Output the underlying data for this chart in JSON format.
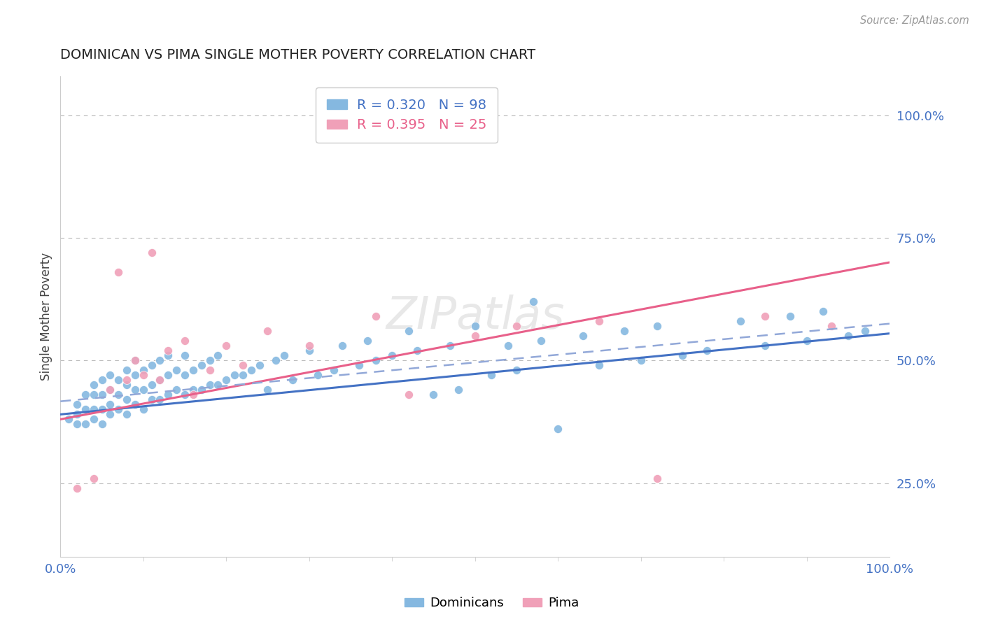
{
  "title": "DOMINICAN VS PIMA SINGLE MOTHER POVERTY CORRELATION CHART",
  "source": "Source: ZipAtlas.com",
  "ylabel": "Single Mother Poverty",
  "blue_color": "#85B8E0",
  "pink_color": "#F0A0B8",
  "blue_line_color": "#4472C4",
  "pink_line_color": "#E8608A",
  "dashed_line_color": "#92A8D8",
  "legend_label1": "Dominicans",
  "legend_label2": "Pima",
  "legend_r1": "R = 0.320",
  "legend_n1": "N = 98",
  "legend_r2": "R = 0.395",
  "legend_n2": "N = 25",
  "ytick_color": "#4472C4",
  "xtick_color": "#4472C4",
  "title_color": "#222222",
  "source_color": "#999999",
  "grid_color": "#BBBBBB",
  "xlim": [
    0.0,
    1.0
  ],
  "ylim": [
    0.1,
    1.08
  ],
  "yticks": [
    0.25,
    0.5,
    0.75,
    1.0
  ],
  "ytick_labels": [
    "25.0%",
    "50.0%",
    "75.0%",
    "100.0%"
  ],
  "blue_line_x0": 0.0,
  "blue_line_y0": 0.39,
  "blue_line_x1": 1.0,
  "blue_line_y1": 0.555,
  "pink_line_x0": 0.0,
  "pink_line_y0": 0.38,
  "pink_line_x1": 1.0,
  "pink_line_y1": 0.7,
  "dashed_line_x0": 0.4,
  "dashed_line_y0": 0.48,
  "dashed_line_x1": 1.0,
  "dashed_line_y1": 0.575,
  "dom_x": [
    0.01,
    0.02,
    0.02,
    0.02,
    0.03,
    0.03,
    0.03,
    0.04,
    0.04,
    0.04,
    0.04,
    0.05,
    0.05,
    0.05,
    0.05,
    0.06,
    0.06,
    0.06,
    0.06,
    0.07,
    0.07,
    0.07,
    0.08,
    0.08,
    0.08,
    0.08,
    0.09,
    0.09,
    0.09,
    0.09,
    0.1,
    0.1,
    0.1,
    0.11,
    0.11,
    0.11,
    0.12,
    0.12,
    0.12,
    0.13,
    0.13,
    0.13,
    0.14,
    0.14,
    0.15,
    0.15,
    0.15,
    0.16,
    0.16,
    0.17,
    0.17,
    0.18,
    0.18,
    0.19,
    0.19,
    0.2,
    0.21,
    0.22,
    0.23,
    0.24,
    0.25,
    0.26,
    0.27,
    0.28,
    0.3,
    0.31,
    0.33,
    0.34,
    0.36,
    0.37,
    0.38,
    0.4,
    0.42,
    0.43,
    0.45,
    0.47,
    0.48,
    0.5,
    0.52,
    0.54,
    0.55,
    0.57,
    0.58,
    0.6,
    0.63,
    0.65,
    0.68,
    0.7,
    0.72,
    0.75,
    0.78,
    0.82,
    0.85,
    0.88,
    0.9,
    0.92,
    0.95,
    0.97
  ],
  "dom_y": [
    0.38,
    0.37,
    0.39,
    0.41,
    0.37,
    0.4,
    0.43,
    0.38,
    0.4,
    0.43,
    0.45,
    0.37,
    0.4,
    0.43,
    0.46,
    0.39,
    0.41,
    0.44,
    0.47,
    0.4,
    0.43,
    0.46,
    0.39,
    0.42,
    0.45,
    0.48,
    0.41,
    0.44,
    0.47,
    0.5,
    0.4,
    0.44,
    0.48,
    0.42,
    0.45,
    0.49,
    0.42,
    0.46,
    0.5,
    0.43,
    0.47,
    0.51,
    0.44,
    0.48,
    0.43,
    0.47,
    0.51,
    0.44,
    0.48,
    0.44,
    0.49,
    0.45,
    0.5,
    0.45,
    0.51,
    0.46,
    0.47,
    0.47,
    0.48,
    0.49,
    0.44,
    0.5,
    0.51,
    0.46,
    0.52,
    0.47,
    0.48,
    0.53,
    0.49,
    0.54,
    0.5,
    0.51,
    0.56,
    0.52,
    0.43,
    0.53,
    0.44,
    0.57,
    0.47,
    0.53,
    0.48,
    0.62,
    0.54,
    0.36,
    0.55,
    0.49,
    0.56,
    0.5,
    0.57,
    0.51,
    0.52,
    0.58,
    0.53,
    0.59,
    0.54,
    0.6,
    0.55,
    0.56
  ],
  "pima_x": [
    0.02,
    0.04,
    0.06,
    0.07,
    0.08,
    0.09,
    0.1,
    0.11,
    0.12,
    0.13,
    0.15,
    0.16,
    0.18,
    0.2,
    0.22,
    0.25,
    0.3,
    0.38,
    0.42,
    0.5,
    0.55,
    0.65,
    0.72,
    0.85,
    0.93
  ],
  "pima_y": [
    0.24,
    0.26,
    0.44,
    0.68,
    0.46,
    0.5,
    0.47,
    0.72,
    0.46,
    0.52,
    0.54,
    0.43,
    0.48,
    0.53,
    0.49,
    0.56,
    0.53,
    0.59,
    0.43,
    0.55,
    0.57,
    0.58,
    0.26,
    0.59,
    0.57
  ]
}
